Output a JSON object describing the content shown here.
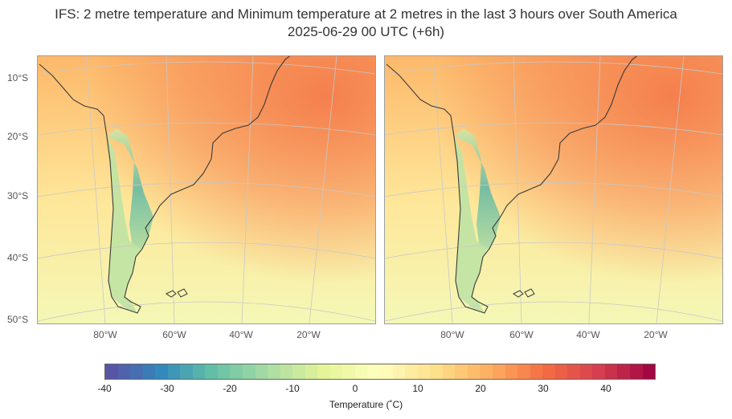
{
  "title": {
    "line1": "IFS: 2 metre temperature and Minimum temperature at 2 metres in the last 3 hours over South America",
    "line2": "2025-06-29 00 UTC (+6h)"
  },
  "panels": [
    {
      "name": "2 metre temperature"
    },
    {
      "name": "Minimum temperature at 2 metres in the last 3 hours"
    }
  ],
  "lat_labels": [
    "10°S",
    "20°S",
    "30°S",
    "40°S",
    "50°S"
  ],
  "lon_labels": [
    "80°W",
    "60°W",
    "40°W",
    "20°W"
  ],
  "colorbar": {
    "label": "Temperature (˚C)",
    "ticks": [
      "-40",
      "-30",
      "-20",
      "-10",
      "0",
      "10",
      "20",
      "30",
      "40"
    ],
    "range": [
      -40,
      48
    ],
    "step": 2,
    "colormap": "Spectral_r"
  },
  "colors": {
    "land_hot": "#f47c4c",
    "land_warm": "#fdb86a",
    "ocean_mild": "#fee79a",
    "andes_cold": "#5fb8a5",
    "south_cool": "#f4f8b6",
    "coastline": "#3a3a3a",
    "grid": "#c8c8c8"
  }
}
